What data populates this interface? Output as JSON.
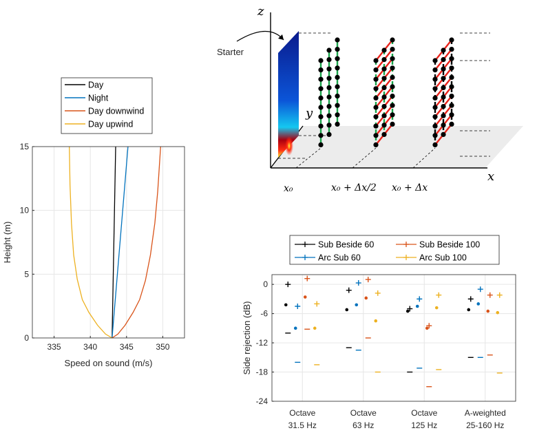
{
  "chart_data": [
    {
      "type": "line",
      "xlabel": "Speed on sound (m/s)",
      "ylabel": "Height (m)",
      "xlim": [
        332,
        353
      ],
      "ylim": [
        0,
        15
      ],
      "xticks": [
        "335",
        "340",
        "345",
        "350"
      ],
      "yticks": [
        "0",
        "5",
        "10",
        "15"
      ],
      "grid": true,
      "legend_position": "top-outside",
      "series": [
        {
          "name": "Day",
          "color": "#000000",
          "points": [
            [
              343.0,
              0
            ],
            [
              343.5,
              15
            ]
          ]
        },
        {
          "name": "Night",
          "color": "#0072BD",
          "points": [
            [
              343.0,
              0
            ],
            [
              345.2,
              15
            ]
          ]
        },
        {
          "name": "Day downwind",
          "color": "#D95319",
          "points": [
            [
              343.0,
              0
            ],
            [
              343.8,
              0.3
            ],
            [
              344.8,
              1
            ],
            [
              345.9,
              2
            ],
            [
              346.8,
              3
            ],
            [
              347.6,
              4.5
            ],
            [
              348.3,
              6.5
            ],
            [
              348.9,
              9
            ],
            [
              349.3,
              11.5
            ],
            [
              349.7,
              15
            ]
          ]
        },
        {
          "name": "Day upwind",
          "color": "#EDB120",
          "points": [
            [
              343.0,
              0
            ],
            [
              342.1,
              0.3
            ],
            [
              341.0,
              1
            ],
            [
              339.8,
              2
            ],
            [
              338.9,
              3
            ],
            [
              338.2,
              4.6
            ],
            [
              337.7,
              6.5
            ],
            [
              337.4,
              9
            ],
            [
              337.2,
              12
            ],
            [
              337.1,
              15
            ]
          ]
        }
      ]
    },
    {
      "type": "diagram",
      "z_label": "z",
      "y_label": "y",
      "x_label": "x",
      "starter_label": "Starter",
      "position_labels": [
        "x₀",
        "x₀ + Δx/2",
        "x₀ + Δx"
      ],
      "colors": {
        "green": "#1aa34a",
        "red": "#e8231b",
        "node": "#000000"
      }
    },
    {
      "type": "scatter",
      "ylabel": "Side rejection (dB)",
      "ylim": [
        -24,
        2
      ],
      "yticks": [
        "0",
        "-6",
        "-12",
        "-18",
        "-24"
      ],
      "categories": [
        "Octave\n31.5 Hz",
        "Octave\n63 Hz",
        "Octave\n125 Hz",
        "A-weighted\n25-160 Hz"
      ],
      "grid": true,
      "legend_position": "top-outside",
      "series": [
        {
          "name": "Sub Beside 60",
          "color": "#000000",
          "plus": [
            0,
            -1.2,
            -5.0,
            -3.0
          ],
          "dot": [
            -4.2,
            -5.2,
            -5.5,
            -5.2
          ],
          "dash": [
            -10,
            -13,
            -18,
            -15
          ]
        },
        {
          "name": "Arc Sub 60",
          "color": "#0072BD",
          "plus": [
            -4.5,
            0.3,
            -3.0,
            -1.0
          ],
          "dot": [
            -9.0,
            -4.2,
            -4.5,
            -4.0
          ],
          "dash": [
            -16,
            -13.5,
            -17.2,
            -15
          ]
        },
        {
          "name": "Sub Beside 100",
          "color": "#D95319",
          "plus": [
            1.2,
            1.0,
            -8.5,
            -2.2
          ],
          "dot": [
            -2.6,
            -2.8,
            -9.0,
            -5.5
          ],
          "dash": [
            -9.2,
            -11,
            -21,
            -14.5
          ]
        },
        {
          "name": "Arc Sub 100",
          "color": "#EDB120",
          "plus": [
            -4.0,
            -1.8,
            -2.2,
            -2.2
          ],
          "dot": [
            -9.0,
            -7.5,
            -4.8,
            -5.8
          ],
          "dash": [
            -16.5,
            -18,
            -17.5,
            -18.2
          ]
        }
      ]
    }
  ]
}
